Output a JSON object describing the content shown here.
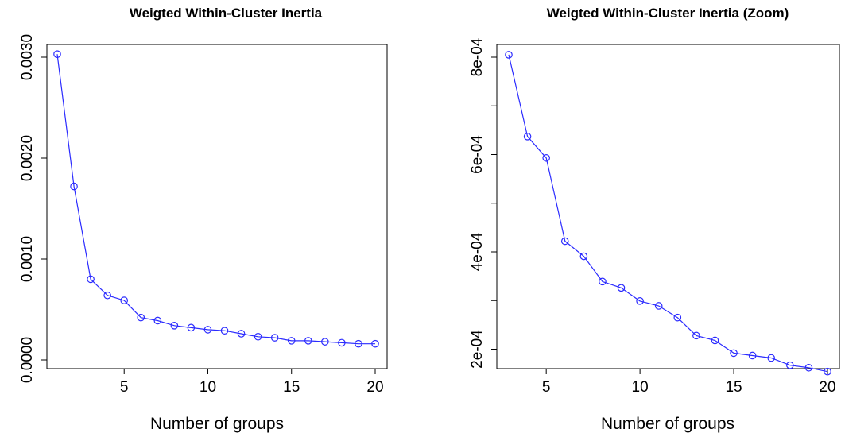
{
  "colors": {
    "series": "#2b2bff",
    "axis": "#000000"
  },
  "chart_data": [
    {
      "type": "line",
      "title": "Weigted Within-Cluster Inertia",
      "xlabel": "Number of groups",
      "ylabel": "",
      "xlim": [
        1,
        20
      ],
      "ylim": [
        0,
        0.003
      ],
      "x_ticks": [
        5,
        10,
        15,
        20
      ],
      "x_tick_labels": [
        "5",
        "10",
        "15",
        "20"
      ],
      "y_ticks": [
        0,
        0.001,
        0.002,
        0.003
      ],
      "y_tick_labels": [
        "0.0000",
        "0.0010",
        "0.0020",
        "0.0030"
      ],
      "grid": false,
      "series": [
        {
          "marker": "open-circle",
          "x": [
            1,
            2,
            3,
            4,
            5,
            6,
            7,
            8,
            9,
            10,
            11,
            12,
            13,
            14,
            15,
            16,
            17,
            18,
            19,
            20
          ],
          "values": [
            0.00303,
            0.00172,
            0.0008,
            0.00064,
            0.00059,
            0.00042,
            0.00039,
            0.00034,
            0.00032,
            0.0003,
            0.00029,
            0.00026,
            0.00023,
            0.00022,
            0.00019,
            0.00019,
            0.00018,
            0.00017,
            0.00016,
            0.00016
          ]
        }
      ]
    },
    {
      "type": "line",
      "title": "Weigted Within-Cluster Inertia (Zoom)",
      "xlabel": "Number of groups",
      "ylabel": "",
      "xlim": [
        3,
        20
      ],
      "ylim": [
        0.00016,
        0.0008
      ],
      "x_ticks": [
        5,
        10,
        15,
        20
      ],
      "x_tick_labels": [
        "5",
        "10",
        "15",
        "20"
      ],
      "y_ticks": [
        0.0002,
        0.0003,
        0.0004,
        0.0005,
        0.0006,
        0.0007,
        0.0008
      ],
      "y_tick_labels": [
        "2e-04",
        "",
        "4e-04",
        "",
        "6e-04",
        "",
        "8e-04"
      ],
      "grid": false,
      "series": [
        {
          "marker": "open-circle",
          "x": [
            3,
            4,
            5,
            6,
            7,
            8,
            9,
            10,
            11,
            12,
            13,
            14,
            15,
            16,
            17,
            18,
            19,
            20
          ],
          "values": [
            0.000805,
            0.000637,
            0.000593,
            0.000422,
            0.000391,
            0.000339,
            0.000326,
            0.000299,
            0.000289,
            0.000265,
            0.000228,
            0.000218,
            0.000192,
            0.000187,
            0.000182,
            0.000167,
            0.000162,
            0.000154
          ]
        }
      ]
    }
  ]
}
